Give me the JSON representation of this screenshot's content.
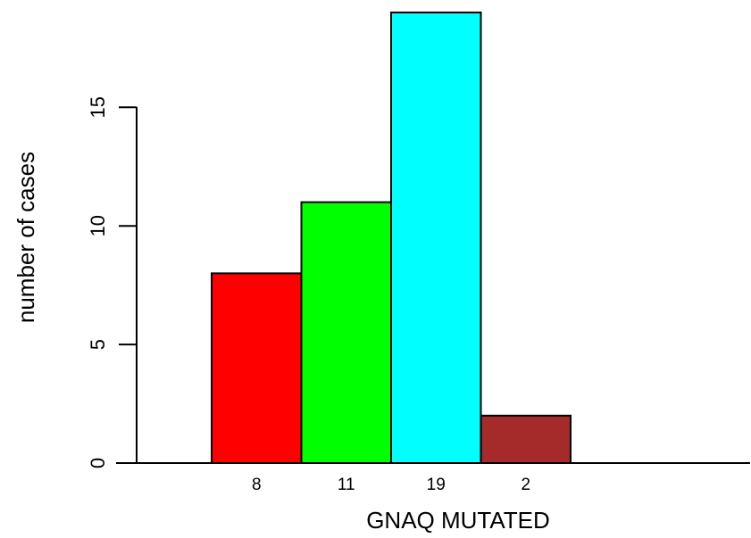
{
  "chart_data": {
    "type": "bar",
    "categories": [
      "8",
      "11",
      "19",
      "2"
    ],
    "values": [
      8,
      11,
      19,
      2
    ],
    "colors": [
      "#ff0000",
      "#00ff00",
      "#00ffff",
      "#a52a2a"
    ],
    "xlabel": "GNAQ MUTATED",
    "ylabel": "number of cases",
    "yticks": [
      0,
      5,
      10,
      15
    ],
    "ytick_labels": [
      "0",
      "5",
      "10",
      "15"
    ],
    "ylim": [
      0,
      19
    ],
    "grid": false,
    "legend": "none"
  }
}
